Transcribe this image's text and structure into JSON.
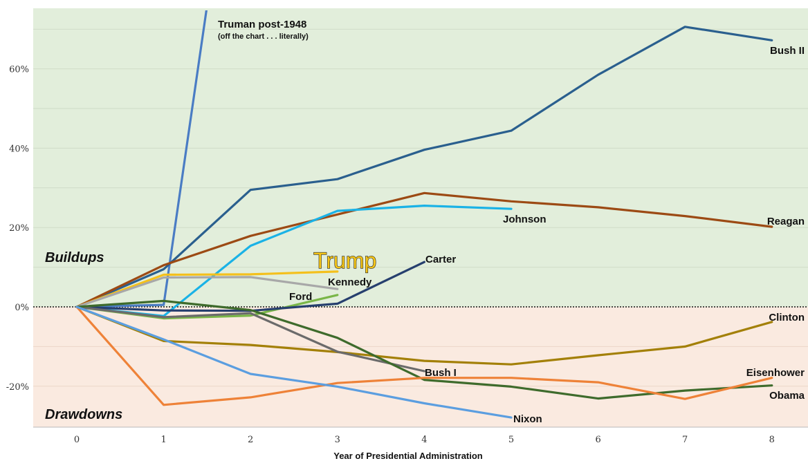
{
  "chart_data": {
    "type": "line",
    "title": "",
    "xlabel": "Year of Presidential Administration",
    "ylabel": "",
    "x": [
      0,
      1,
      2,
      3,
      4,
      5,
      6,
      7,
      8
    ],
    "xlim": [
      -1,
      8.5
    ],
    "ylim": [
      -30,
      76
    ],
    "y_ticks": [
      {
        "value": 60,
        "label": "60%"
      },
      {
        "value": 40,
        "label": "40%"
      },
      {
        "value": 20,
        "label": "20%"
      },
      {
        "value": 0,
        "label": "0%"
      },
      {
        "value": -20,
        "label": "-20%"
      }
    ],
    "x_tick_labels": [
      "0",
      "1",
      "2",
      "3",
      "4",
      "5",
      "6",
      "7",
      "8"
    ],
    "regions": {
      "positive": {
        "label": "Buildups",
        "color": "#e2eedb"
      },
      "negative": {
        "label": "Drawdowns",
        "color": "#faeae0"
      }
    },
    "zero_line": "dotted",
    "grid": true,
    "series": [
      {
        "name": "Truman post-1948",
        "note": "(off the chart . . . literally)",
        "color": "#4a7cc4",
        "x": [
          0,
          1,
          1.5
        ],
        "values": [
          0,
          0.5,
          76
        ]
      },
      {
        "name": "Bush II",
        "color": "#2a5f8e",
        "x": [
          0,
          1,
          2,
          3,
          4,
          5,
          6,
          7,
          8
        ],
        "values": [
          0,
          9.5,
          29.5,
          32.2,
          39.6,
          44.4,
          58.5,
          70.6,
          67.2
        ]
      },
      {
        "name": "Reagan",
        "color": "#9c4a14",
        "x": [
          0,
          1,
          2,
          3,
          4,
          5,
          6,
          7,
          8
        ],
        "values": [
          0,
          10.5,
          17.9,
          23.3,
          28.7,
          26.6,
          25.1,
          22.9,
          20.2
        ]
      },
      {
        "name": "Johnson",
        "color": "#1ab2e6",
        "x": [
          0,
          1,
          2,
          3,
          4,
          5
        ],
        "values": [
          0,
          -2.3,
          15.4,
          24.2,
          25.5,
          24.7
        ]
      },
      {
        "name": "Trump",
        "color": "#f4c01c",
        "x": [
          0,
          1,
          2,
          3
        ],
        "values": [
          0,
          8.1,
          8.2,
          8.9
        ]
      },
      {
        "name": "Kennedy",
        "color": "#a8a8a8",
        "x": [
          0,
          1,
          2,
          3
        ],
        "values": [
          0,
          7.4,
          7.5,
          4.5
        ]
      },
      {
        "name": "Ford",
        "color": "#7ab648",
        "x": [
          0,
          1,
          2,
          3
        ],
        "values": [
          0,
          -2.9,
          -2.2,
          3.0
        ]
      },
      {
        "name": "Carter",
        "color": "#263f6e",
        "x": [
          0,
          1,
          2,
          3,
          4
        ],
        "values": [
          0,
          -0.9,
          -1.0,
          0.8,
          11.3
        ]
      },
      {
        "name": "Clinton",
        "color": "#a38008",
        "x": [
          0,
          1,
          2,
          3,
          4,
          5,
          6,
          7,
          8
        ],
        "values": [
          0,
          -8.6,
          -9.6,
          -11.4,
          -13.6,
          -14.5,
          -12.2,
          -10.0,
          -3.8
        ]
      },
      {
        "name": "Bush I",
        "color": "#6b6b6b",
        "x": [
          0,
          1,
          2,
          3,
          4
        ],
        "values": [
          0,
          -2.6,
          -1.6,
          -11.3,
          -16.2
        ]
      },
      {
        "name": "Obama",
        "color": "#3e6b2c",
        "x": [
          0,
          1,
          2,
          3,
          4,
          5,
          6,
          7,
          8
        ],
        "values": [
          0,
          1.5,
          -0.8,
          -7.8,
          -18.4,
          -20.1,
          -23.1,
          -21.1,
          -19.8
        ]
      },
      {
        "name": "Eisenhower",
        "color": "#ee8238",
        "x": [
          0,
          1,
          2,
          3,
          4,
          5,
          6,
          7,
          8
        ],
        "values": [
          0,
          -24.7,
          -22.8,
          -19.2,
          -17.9,
          -17.9,
          -19.0,
          -23.2,
          -17.9
        ]
      },
      {
        "name": "Nixon",
        "color": "#5b9ee0",
        "x": [
          0,
          1,
          2,
          3,
          4,
          5
        ],
        "values": [
          0,
          -8.2,
          -16.9,
          -20.1,
          -24.3,
          -27.9
        ]
      }
    ]
  }
}
